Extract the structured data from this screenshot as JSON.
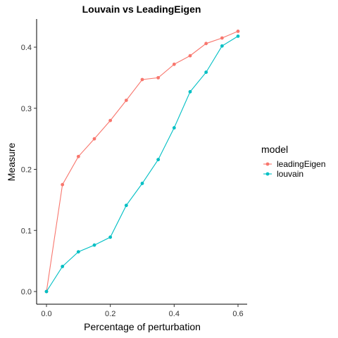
{
  "chart_data": {
    "type": "line",
    "title": "Louvain vs LeadingEigen",
    "xlabel": "Percentage of perturbation",
    "ylabel": "Measure",
    "xlim": [
      0,
      0.6
    ],
    "ylim": [
      0,
      0.42
    ],
    "xticks": [
      "0.0",
      "0.2",
      "0.4",
      "0.6"
    ],
    "yticks": [
      "0.0",
      "0.1",
      "0.2",
      "0.3",
      "0.4"
    ],
    "grid": false,
    "legend_position": "right",
    "legend_title": "model",
    "x": [
      0.0,
      0.05,
      0.1,
      0.15,
      0.2,
      0.25,
      0.3,
      0.35,
      0.4,
      0.45,
      0.5,
      0.55,
      0.6
    ],
    "series": [
      {
        "name": "leadingEigen",
        "color": "#F8766D",
        "values": [
          0.0,
          0.175,
          0.221,
          0.25,
          0.28,
          0.313,
          0.347,
          0.35,
          0.372,
          0.386,
          0.406,
          0.415,
          0.426
        ]
      },
      {
        "name": "louvain",
        "color": "#00BFC4",
        "values": [
          0.0,
          0.041,
          0.065,
          0.076,
          0.089,
          0.141,
          0.177,
          0.216,
          0.268,
          0.327,
          0.359,
          0.402,
          0.418
        ]
      }
    ]
  }
}
